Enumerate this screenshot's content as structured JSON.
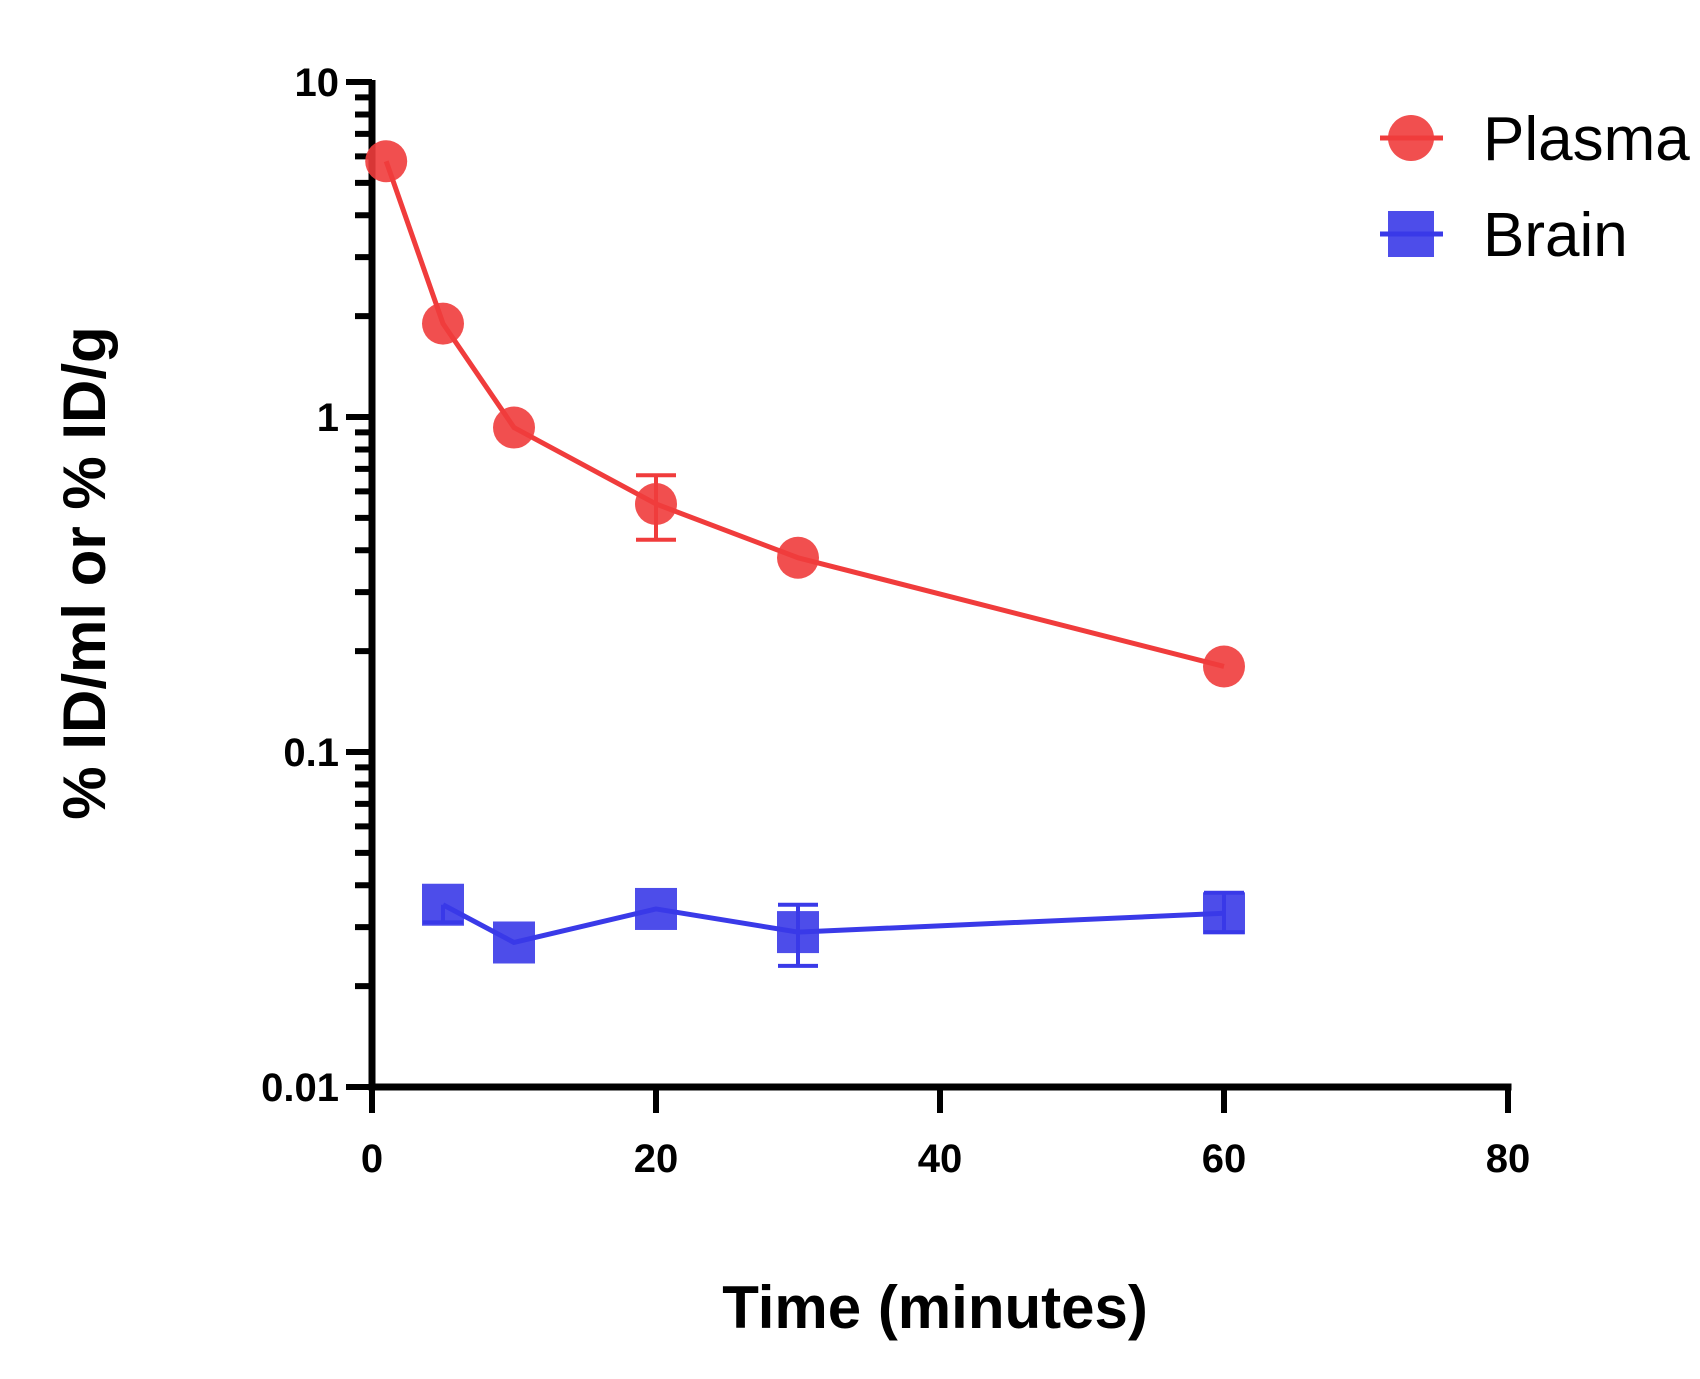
{
  "chart_data": {
    "type": "scatter",
    "xlabel": "Time (minutes)",
    "ylabel": "% ID/ml or % ID/g",
    "xlim": [
      0,
      80
    ],
    "ylim": [
      0.01,
      10
    ],
    "yscale": "log",
    "xticks": [
      0,
      20,
      40,
      60,
      80
    ],
    "xtick_labels": [
      "0",
      "20",
      "40",
      "60",
      "80"
    ],
    "yticks": [
      0.01,
      0.1,
      1,
      10
    ],
    "ytick_labels": [
      "0.01",
      "0.1",
      "1",
      "10"
    ],
    "grid": false,
    "legend_position": "top-right",
    "series": [
      {
        "name": "Plasma",
        "color": "#f03c3c",
        "marker": "circle",
        "x": [
          1,
          5,
          10,
          20,
          30,
          60
        ],
        "y": [
          5.8,
          1.9,
          0.93,
          0.55,
          0.38,
          0.18
        ],
        "error_low": [
          null,
          null,
          null,
          0.43,
          null,
          null
        ],
        "error_high": [
          null,
          null,
          null,
          0.67,
          null,
          null
        ]
      },
      {
        "name": "Brain",
        "color": "#3a3ae8",
        "marker": "square",
        "x": [
          5,
          10,
          20,
          30,
          60
        ],
        "y": [
          0.035,
          0.027,
          0.034,
          0.029,
          0.033
        ],
        "error_low": [
          0.031,
          null,
          null,
          0.023,
          0.029
        ],
        "error_high": [
          null,
          null,
          null,
          0.035,
          0.038
        ]
      }
    ]
  }
}
